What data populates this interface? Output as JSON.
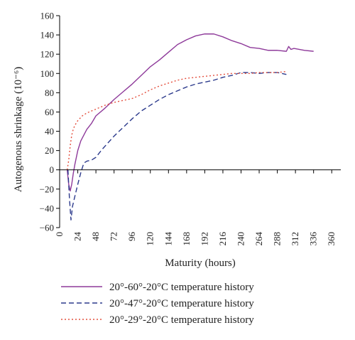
{
  "chart_data": {
    "type": "line",
    "xlabel": "Maturity (hours)",
    "ylabel": "Autogenous shrinkage (10⁻⁶)",
    "xlim": [
      0,
      372
    ],
    "ylim": [
      -60,
      160
    ],
    "xticks": [
      0,
      24,
      48,
      72,
      96,
      120,
      144,
      168,
      192,
      216,
      240,
      264,
      288,
      312,
      336,
      360
    ],
    "yticks": [
      -60,
      -40,
      -20,
      0,
      20,
      40,
      60,
      80,
      100,
      120,
      140,
      160
    ],
    "grid": false,
    "legend_position": "bottom",
    "series": [
      {
        "name": "20°-60°-20°C temperature history",
        "color": "#8e3a9a",
        "dash": "solid",
        "points": [
          [
            10,
            0
          ],
          [
            12,
            -15
          ],
          [
            14,
            -22
          ],
          [
            16,
            -15
          ],
          [
            18,
            -4
          ],
          [
            20,
            5
          ],
          [
            24,
            20
          ],
          [
            28,
            30
          ],
          [
            32,
            36
          ],
          [
            36,
            42
          ],
          [
            42,
            48
          ],
          [
            48,
            56
          ],
          [
            60,
            64
          ],
          [
            72,
            73
          ],
          [
            84,
            81
          ],
          [
            96,
            89
          ],
          [
            108,
            98
          ],
          [
            120,
            107
          ],
          [
            132,
            114
          ],
          [
            144,
            122
          ],
          [
            156,
            130
          ],
          [
            168,
            135
          ],
          [
            180,
            139
          ],
          [
            192,
            141
          ],
          [
            204,
            141
          ],
          [
            216,
            138
          ],
          [
            228,
            134
          ],
          [
            240,
            131
          ],
          [
            252,
            127
          ],
          [
            264,
            126
          ],
          [
            276,
            124
          ],
          [
            288,
            124
          ],
          [
            300,
            123
          ],
          [
            303,
            128
          ],
          [
            306,
            125
          ],
          [
            310,
            126
          ],
          [
            324,
            124
          ],
          [
            336,
            123
          ]
        ]
      },
      {
        "name": "20°-47°-20°C temperature history",
        "color": "#2c3a8c",
        "dash": "dash",
        "points": [
          [
            11,
            0
          ],
          [
            13,
            -30
          ],
          [
            15,
            -52
          ],
          [
            17,
            -38
          ],
          [
            20,
            -28
          ],
          [
            24,
            -15
          ],
          [
            28,
            -3
          ],
          [
            32,
            7
          ],
          [
            36,
            9
          ],
          [
            42,
            10
          ],
          [
            48,
            13
          ],
          [
            56,
            21
          ],
          [
            64,
            28
          ],
          [
            72,
            35
          ],
          [
            84,
            44
          ],
          [
            96,
            53
          ],
          [
            108,
            61
          ],
          [
            120,
            67
          ],
          [
            132,
            73
          ],
          [
            144,
            78
          ],
          [
            156,
            82
          ],
          [
            168,
            86
          ],
          [
            180,
            89
          ],
          [
            192,
            91
          ],
          [
            204,
            93
          ],
          [
            216,
            96
          ],
          [
            228,
            98
          ],
          [
            240,
            101
          ],
          [
            252,
            101
          ],
          [
            264,
            100
          ],
          [
            276,
            101
          ],
          [
            288,
            101
          ],
          [
            294,
            100
          ],
          [
            300,
            99
          ]
        ]
      },
      {
        "name": "20°-29°-20°C temperature history",
        "color": "#e4503f",
        "dash": "dot",
        "points": [
          [
            10,
            0
          ],
          [
            12,
            10
          ],
          [
            14,
            25
          ],
          [
            16,
            36
          ],
          [
            18,
            42
          ],
          [
            20,
            46
          ],
          [
            24,
            51
          ],
          [
            30,
            56
          ],
          [
            36,
            59
          ],
          [
            48,
            63
          ],
          [
            60,
            67
          ],
          [
            72,
            70
          ],
          [
            84,
            72
          ],
          [
            96,
            74
          ],
          [
            108,
            78
          ],
          [
            120,
            83
          ],
          [
            132,
            87
          ],
          [
            144,
            90
          ],
          [
            156,
            93
          ],
          [
            168,
            95
          ],
          [
            180,
            96
          ],
          [
            192,
            97
          ],
          [
            204,
            98
          ],
          [
            216,
            99
          ],
          [
            228,
            100
          ],
          [
            240,
            100
          ],
          [
            252,
            100
          ],
          [
            264,
            101
          ],
          [
            276,
            101
          ],
          [
            288,
            101
          ],
          [
            300,
            102
          ]
        ]
      }
    ]
  }
}
